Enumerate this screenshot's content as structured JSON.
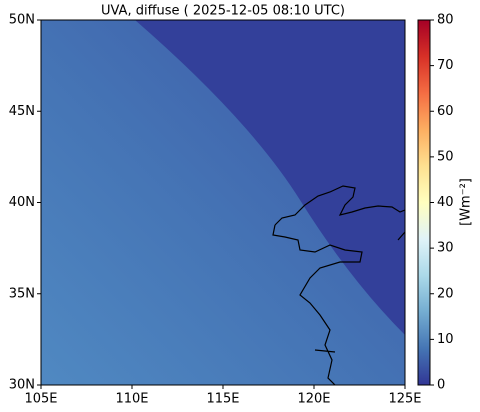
{
  "chart_data": {
    "type": "map",
    "title": "UVA, diffuse ( 2025-12-05 08:10 UTC)",
    "xlim": [
      105,
      125
    ],
    "xticks": [
      {
        "value": 105,
        "label": "105E"
      },
      {
        "value": 110,
        "label": "110E"
      },
      {
        "value": 115,
        "label": "115E"
      },
      {
        "value": 120,
        "label": "120E"
      },
      {
        "value": 125,
        "label": "125E"
      }
    ],
    "ylim": [
      30,
      50
    ],
    "yticks": [
      {
        "value": 30,
        "label": "30N"
      },
      {
        "value": 35,
        "label": "35N"
      },
      {
        "value": 40,
        "label": "40N"
      },
      {
        "value": 45,
        "label": "45N"
      },
      {
        "value": 50,
        "label": "50N"
      }
    ],
    "colorbar": {
      "label": "[Wm⁻²]",
      "clim": [
        0,
        80
      ],
      "ticks": [
        0,
        10,
        20,
        30,
        40,
        50,
        60,
        70,
        80
      ],
      "colors": [
        "#313695",
        "#4575b4",
        "#74add1",
        "#abd9e9",
        "#e0f3f8",
        "#ffffbf",
        "#fee090",
        "#fdae61",
        "#f46d43",
        "#d73027",
        "#a50026"
      ]
    }
  }
}
